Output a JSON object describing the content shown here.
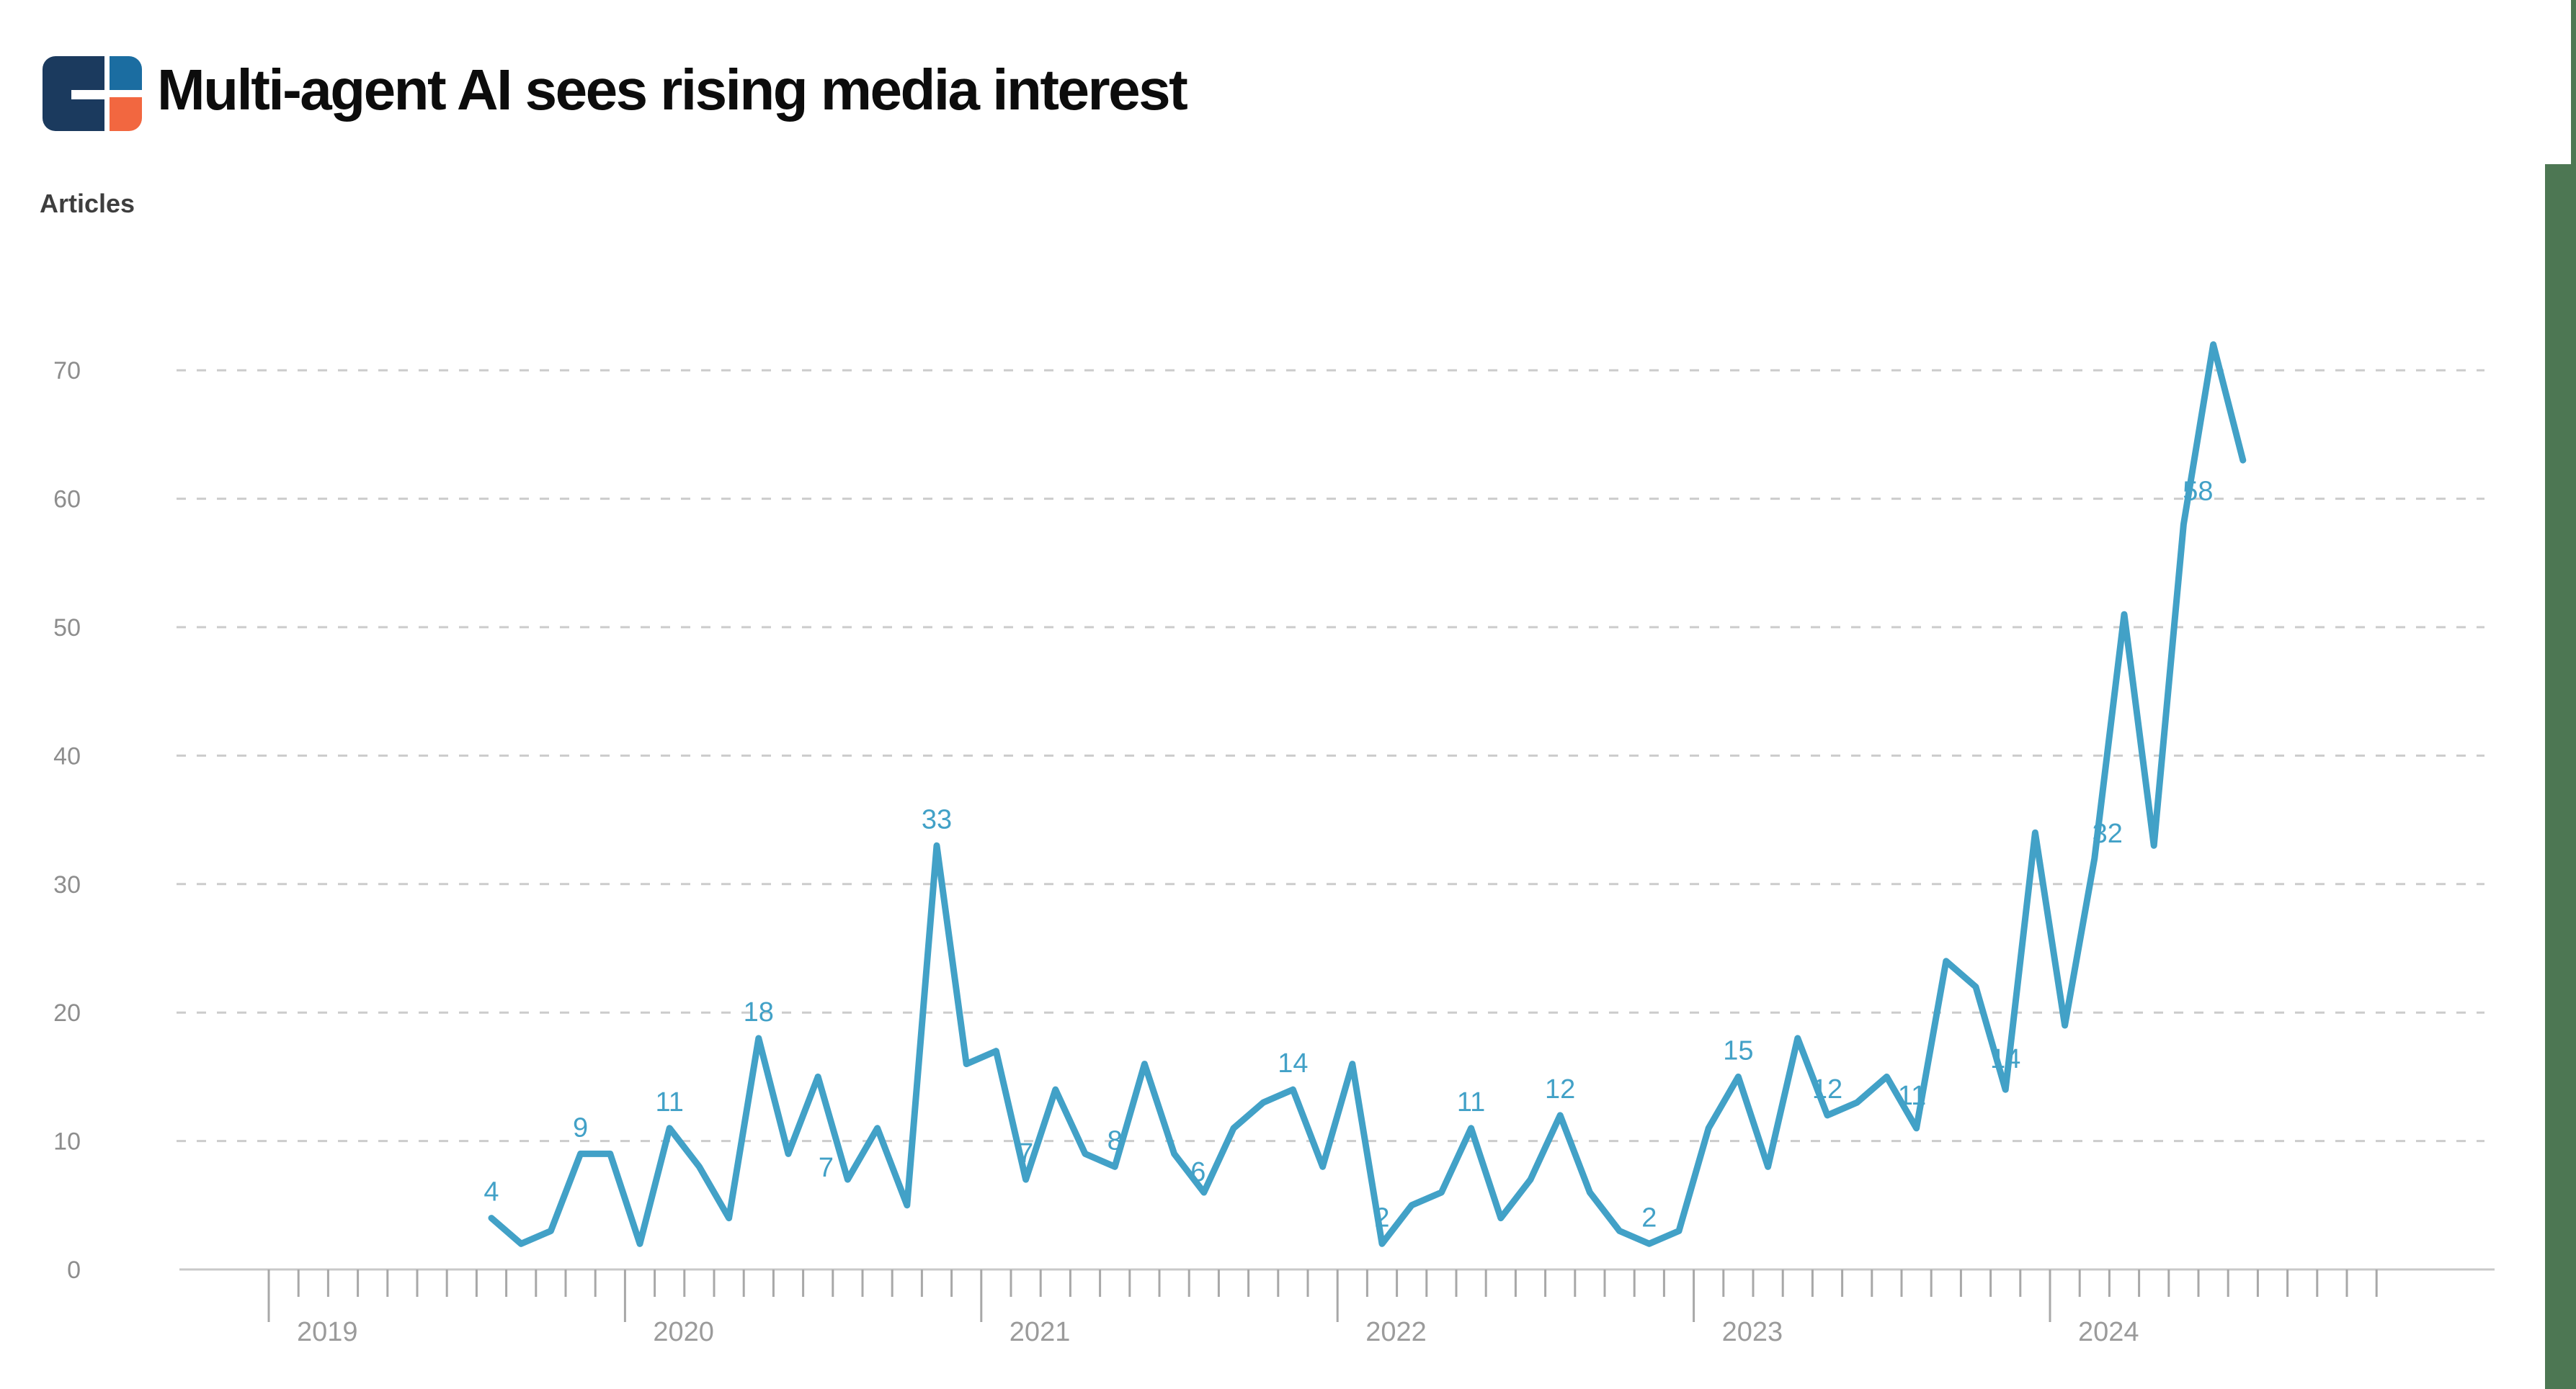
{
  "header": {
    "title": "Multi-agent AI sees rising media interest",
    "logo": {
      "name": "cb-insights-logo",
      "navy": "#1b3a5e",
      "blue": "#1b6da1",
      "orange": "#f26740"
    }
  },
  "colors": {
    "line": "#42a1c7",
    "data_label": "#42a1c7",
    "gridline": "#cccccc",
    "axis_line": "#c9c9c9",
    "tick": "#a8a8a8",
    "year_label": "#9b9b9b",
    "y_tick_label": "#8d8d8d",
    "axis_title": "#3e3e3e",
    "title": "#0c0c0c",
    "green_accent": "#4d7753",
    "background": "#ffffff"
  },
  "y_axis": {
    "label": "Articles",
    "tick_labels": [
      "0",
      "10",
      "20",
      "30",
      "40",
      "50",
      "60",
      "70"
    ]
  },
  "x_axis": {
    "year_labels": [
      "2019",
      "2020",
      "2021",
      "2022",
      "2023",
      "2024"
    ]
  },
  "chart_data": {
    "type": "line",
    "title": "Multi-agent AI sees rising media interest",
    "xlabel": "",
    "ylabel": "Articles",
    "ylim": [
      0,
      75
    ],
    "grid": "horizontal-dashed",
    "legend_position": "none",
    "x": [
      "2019-08",
      "2019-09",
      "2019-10",
      "2019-11",
      "2019-12",
      "2020-01",
      "2020-02",
      "2020-03",
      "2020-04",
      "2020-05",
      "2020-06",
      "2020-07",
      "2020-08",
      "2020-09",
      "2020-10",
      "2020-11",
      "2020-12",
      "2021-01",
      "2021-02",
      "2021-03",
      "2021-04",
      "2021-05",
      "2021-06",
      "2021-07",
      "2021-08",
      "2021-09",
      "2021-10",
      "2021-11",
      "2021-12",
      "2022-01",
      "2022-02",
      "2022-03",
      "2022-04",
      "2022-05",
      "2022-06",
      "2022-07",
      "2022-08",
      "2022-09",
      "2022-10",
      "2022-11",
      "2022-12",
      "2023-01",
      "2023-02",
      "2023-03",
      "2023-04",
      "2023-05",
      "2023-06",
      "2023-07",
      "2023-08",
      "2023-09",
      "2023-10",
      "2023-11",
      "2023-12",
      "2024-01",
      "2024-02",
      "2024-03",
      "2024-04",
      "2024-05",
      "2024-06",
      "2024-07"
    ],
    "values": [
      4,
      2,
      3,
      9,
      9,
      2,
      11,
      8,
      4,
      18,
      9,
      15,
      7,
      11,
      5,
      33,
      16,
      17,
      7,
      14,
      9,
      8,
      16,
      9,
      6,
      11,
      13,
      14,
      8,
      16,
      2,
      5,
      6,
      11,
      4,
      7,
      12,
      6,
      3,
      2,
      3,
      11,
      15,
      8,
      18,
      12,
      13,
      15,
      11,
      24,
      22,
      14,
      34,
      19,
      32,
      51,
      33,
      58,
      72,
      63
    ],
    "point_labels": {
      "every_n_months": 3,
      "values": [
        4,
        9,
        11,
        18,
        7,
        33,
        7,
        8,
        6,
        14,
        2,
        11,
        12,
        2,
        15,
        12,
        11,
        14,
        32,
        58
      ]
    },
    "label_offset_default": [
      0,
      -24
    ],
    "label_offset_overrides": {
      "12": [
        -30,
        -4
      ],
      "24": [
        -8,
        -16
      ],
      "48": [
        -6,
        -33
      ],
      "51": [
        0,
        -30
      ],
      "54": [
        18,
        -22
      ],
      "57": [
        20,
        -34
      ]
    }
  }
}
